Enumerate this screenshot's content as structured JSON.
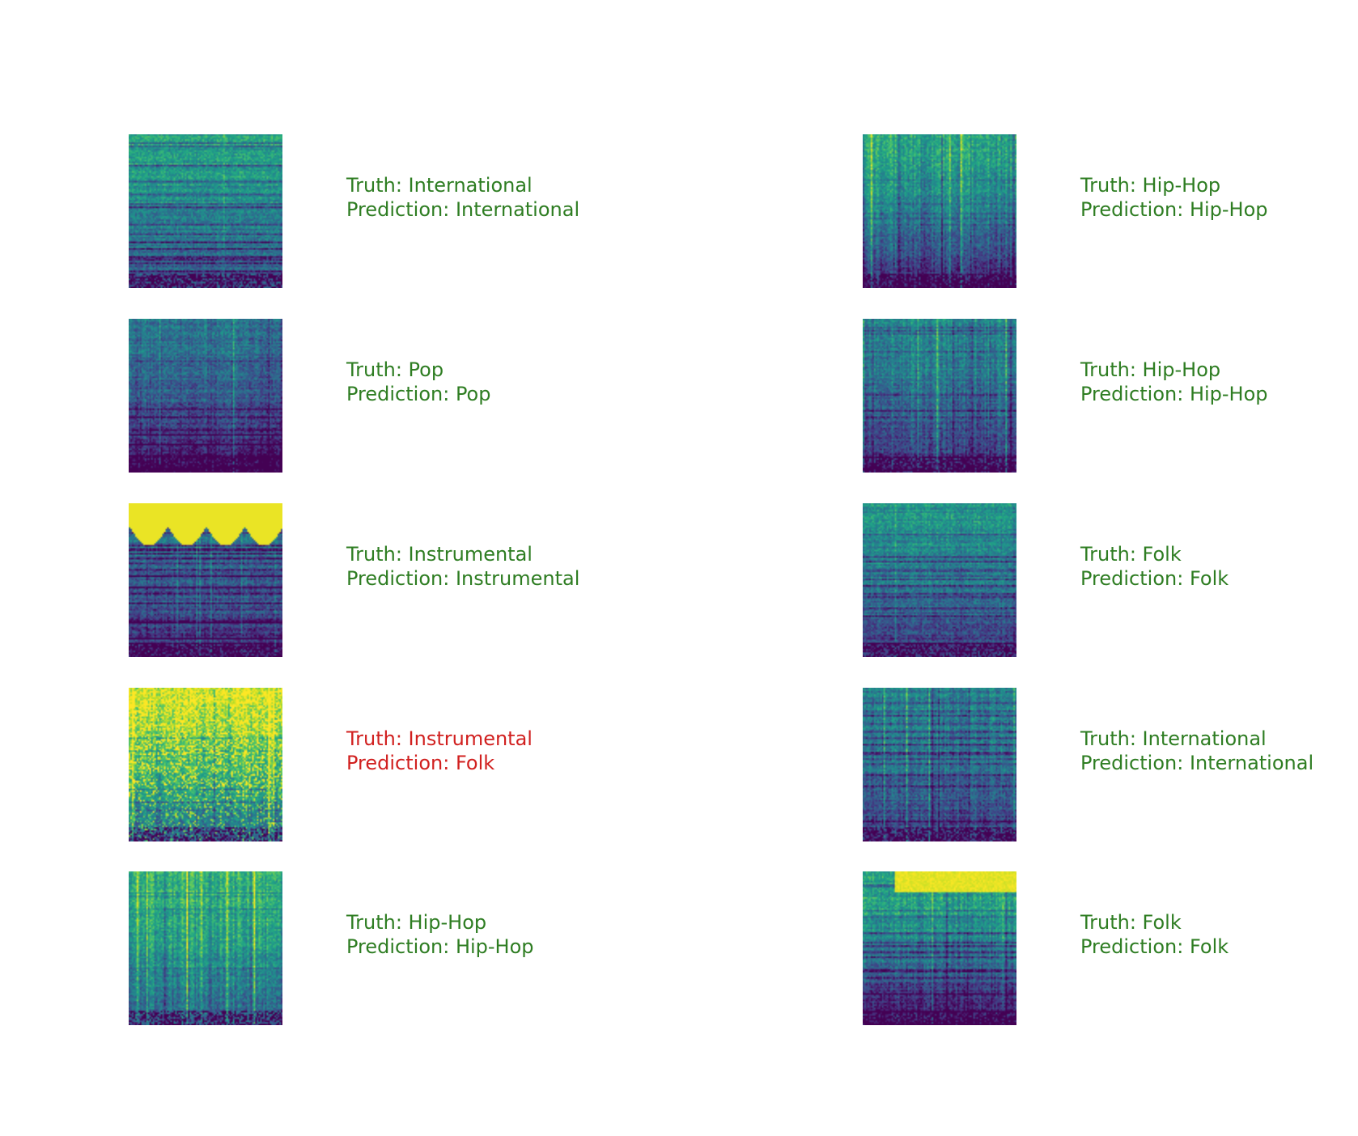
{
  "colors": {
    "correct": "#2e7d22",
    "incorrect": "#d1201f",
    "colormap": "viridis"
  },
  "chart_data": {
    "type": "image-grid",
    "columns": 2,
    "rows": 5,
    "panels": [
      {
        "truth_text": "Truth: International",
        "prediction_text": "Prediction: International",
        "correct": true
      },
      {
        "truth_text": "Truth: Pop",
        "prediction_text": "Prediction: Pop",
        "correct": true
      },
      {
        "truth_text": "Truth: Instrumental",
        "prediction_text": "Prediction: Instrumental",
        "correct": true
      },
      {
        "truth_text": "Truth: Instrumental",
        "prediction_text": "Prediction: Folk",
        "correct": false
      },
      {
        "truth_text": "Truth: Hip-Hop",
        "prediction_text": "Prediction: Hip-Hop",
        "correct": true
      },
      {
        "truth_text": "Truth: Hip-Hop",
        "prediction_text": "Prediction: Hip-Hop",
        "correct": true
      },
      {
        "truth_text": "Truth: Hip-Hop",
        "prediction_text": "Prediction: Hip-Hop",
        "correct": true
      },
      {
        "truth_text": "Truth: Folk",
        "prediction_text": "Prediction: Folk",
        "correct": true
      },
      {
        "truth_text": "Truth: International",
        "prediction_text": "Prediction: International",
        "correct": true
      },
      {
        "truth_text": "Truth: Folk",
        "prediction_text": "Prediction: Folk",
        "correct": true
      }
    ]
  }
}
